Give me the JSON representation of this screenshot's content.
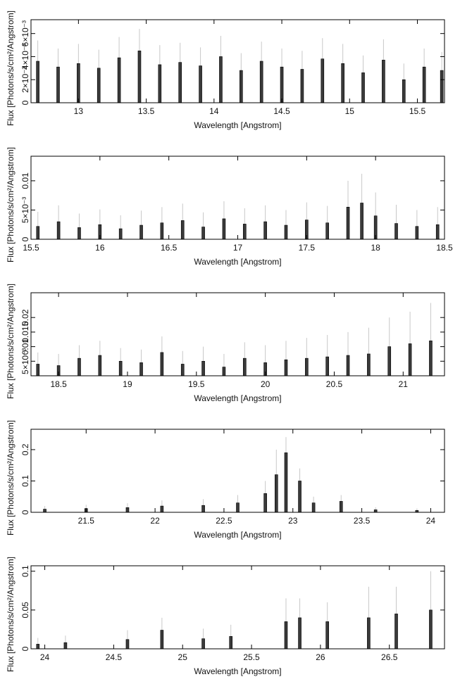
{
  "chart_data": [
    {
      "type": "bar",
      "xlabel": "Wavelength [Angstrom]",
      "ylabel": "Flux [Photons/s/cm²/Angstrom]",
      "xlim": [
        12.65,
        15.7
      ],
      "ylim": [
        0,
        0.0072
      ],
      "xticks": [
        "13",
        "13.5",
        "14",
        "14.5",
        "15",
        "15.5"
      ],
      "yticks": [
        "0",
        "2×10⁻³",
        "4×10⁻³",
        "6×10⁻³"
      ],
      "series": [
        {
          "x": [
            12.7,
            12.85,
            13.0,
            13.15,
            13.3,
            13.45,
            13.6,
            13.75,
            13.9,
            14.05,
            14.2,
            14.35,
            14.5,
            14.65,
            14.8,
            14.95,
            15.1,
            15.25,
            15.4,
            15.55,
            15.68
          ],
          "values": [
            0.0036,
            0.0031,
            0.0034,
            0.003,
            0.0039,
            0.0045,
            0.0033,
            0.0035,
            0.0032,
            0.004,
            0.0028,
            0.0036,
            0.0031,
            0.0029,
            0.0038,
            0.0034,
            0.0026,
            0.0037,
            0.002,
            0.0031,
            0.0028
          ],
          "errors": [
            0.0018,
            0.0016,
            0.0017,
            0.0016,
            0.0018,
            0.0019,
            0.0017,
            0.0017,
            0.0016,
            0.0018,
            0.0015,
            0.0017,
            0.0016,
            0.0016,
            0.0018,
            0.0017,
            0.0015,
            0.0018,
            0.0014,
            0.0016,
            0.0016
          ]
        }
      ]
    },
    {
      "type": "bar",
      "xlabel": "Wavelength [Angstrom]",
      "ylabel": "Flux [Photons/s/cm²/Angstrom]",
      "xlim": [
        15.5,
        18.5
      ],
      "ylim": [
        0,
        0.0142
      ],
      "xticks": [
        "15.5",
        "16",
        "16.5",
        "17",
        "17.5",
        "18",
        "18.5"
      ],
      "yticks": [
        "0",
        "5×10⁻³",
        "0.01"
      ],
      "series": [
        {
          "x": [
            15.55,
            15.7,
            15.85,
            16.0,
            16.15,
            16.3,
            16.45,
            16.6,
            16.75,
            16.9,
            17.05,
            17.2,
            17.35,
            17.5,
            17.65,
            17.8,
            17.9,
            18.0,
            18.15,
            18.3,
            18.45
          ],
          "values": [
            0.0022,
            0.003,
            0.002,
            0.0025,
            0.0018,
            0.0024,
            0.0028,
            0.0032,
            0.0021,
            0.0035,
            0.0026,
            0.003,
            0.0024,
            0.0033,
            0.0028,
            0.0055,
            0.0062,
            0.004,
            0.0027,
            0.0022,
            0.0025
          ],
          "errors": [
            0.0025,
            0.0028,
            0.0024,
            0.0026,
            0.0023,
            0.0025,
            0.0027,
            0.0029,
            0.0025,
            0.003,
            0.0027,
            0.0028,
            0.0026,
            0.003,
            0.0029,
            0.0045,
            0.005,
            0.004,
            0.0032,
            0.0028,
            0.003
          ]
        }
      ]
    },
    {
      "type": "bar",
      "xlabel": "Wavelength [Angstrom]",
      "ylabel": "Flux [Photons/s/cm²/Angstrom]",
      "xlim": [
        18.3,
        21.3
      ],
      "ylim": [
        0,
        0.0285
      ],
      "xticks": [
        "18.5",
        "19",
        "19.5",
        "20",
        "20.5",
        "21"
      ],
      "yticks": [
        "5×10⁻³",
        "0.01",
        "0.015",
        "0.02"
      ],
      "series": [
        {
          "x": [
            18.35,
            18.5,
            18.65,
            18.8,
            18.95,
            19.1,
            19.25,
            19.4,
            19.55,
            19.7,
            19.85,
            20.0,
            20.15,
            20.3,
            20.45,
            20.6,
            20.75,
            20.9,
            21.05,
            21.2
          ],
          "values": [
            0.004,
            0.0035,
            0.006,
            0.007,
            0.005,
            0.0045,
            0.008,
            0.004,
            0.005,
            0.003,
            0.006,
            0.0045,
            0.0055,
            0.006,
            0.0065,
            0.007,
            0.0075,
            0.01,
            0.011,
            0.012
          ],
          "errors": [
            0.004,
            0.004,
            0.0045,
            0.005,
            0.0045,
            0.0045,
            0.0055,
            0.0045,
            0.005,
            0.0045,
            0.0055,
            0.006,
            0.0065,
            0.007,
            0.0075,
            0.008,
            0.009,
            0.01,
            0.011,
            0.013
          ]
        }
      ]
    },
    {
      "type": "bar",
      "xlabel": "Wavelength [Angstrom]",
      "ylabel": "Flux [Photons/s/cm²/Angstrom]",
      "xlim": [
        21.1,
        24.1
      ],
      "ylim": [
        0,
        0.265
      ],
      "xticks": [
        "21.5",
        "22",
        "22.5",
        "23",
        "23.5",
        "24"
      ],
      "yticks": [
        "0",
        "0.1",
        "0.2"
      ],
      "series": [
        {
          "x": [
            21.2,
            21.5,
            21.8,
            22.05,
            22.35,
            22.6,
            22.8,
            22.88,
            22.95,
            23.05,
            23.15,
            23.35,
            23.6,
            23.9
          ],
          "values": [
            0.01,
            0.012,
            0.015,
            0.02,
            0.022,
            0.03,
            0.06,
            0.12,
            0.19,
            0.1,
            0.03,
            0.035,
            0.008,
            0.006
          ],
          "errors": [
            0.01,
            0.012,
            0.014,
            0.018,
            0.02,
            0.025,
            0.04,
            0.08,
            0.05,
            0.04,
            0.02,
            0.02,
            0.008,
            0.006
          ]
        }
      ]
    },
    {
      "type": "bar",
      "xlabel": "Wavelength [Angstrom]",
      "ylabel": "Flux [Photons/s/cm²/Angstrom]",
      "xlim": [
        23.9,
        26.9
      ],
      "ylim": [
        0,
        0.107
      ],
      "xticks": [
        "24",
        "24.5",
        "25",
        "25.5",
        "26",
        "26.5"
      ],
      "yticks": [
        "0",
        "0.05",
        "0.1"
      ],
      "series": [
        {
          "x": [
            23.95,
            24.15,
            24.6,
            24.85,
            25.15,
            25.35,
            25.75,
            25.85,
            26.05,
            26.35,
            26.55,
            26.8
          ],
          "values": [
            0.006,
            0.008,
            0.012,
            0.024,
            0.013,
            0.016,
            0.035,
            0.04,
            0.035,
            0.04,
            0.045,
            0.05
          ],
          "errors": [
            0.008,
            0.009,
            0.012,
            0.016,
            0.013,
            0.015,
            0.03,
            0.025,
            0.025,
            0.04,
            0.035,
            0.05
          ]
        }
      ]
    }
  ]
}
